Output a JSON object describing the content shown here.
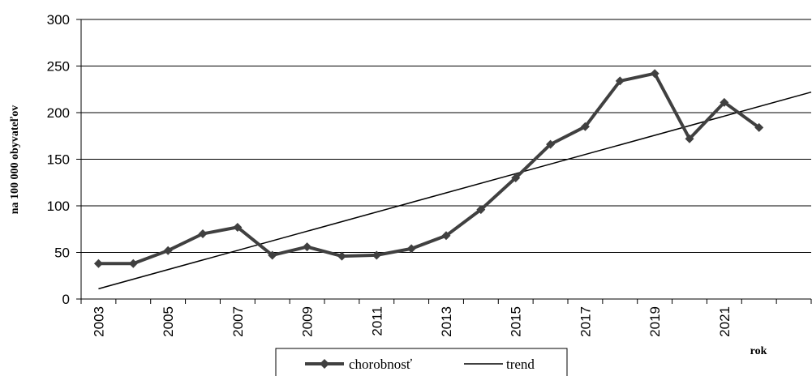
{
  "chart_data": {
    "type": "line",
    "title": "",
    "xlabel": "rok",
    "ylabel": "na 100 000 obyvateľov",
    "ylim": [
      0,
      300
    ],
    "yticks": [
      0,
      50,
      100,
      150,
      200,
      250,
      300
    ],
    "xlim": [
      2002.5,
      2023.5
    ],
    "xtick_labels": [
      "2003",
      "2005",
      "2007",
      "2009",
      "2011",
      "2013",
      "2015",
      "2017",
      "2019",
      "2021"
    ],
    "grid": "horizontal",
    "legend_position": "bottom-center",
    "x": [
      2003,
      2004,
      2005,
      2006,
      2007,
      2008,
      2009,
      2010,
      2011,
      2012,
      2013,
      2014,
      2015,
      2016,
      2017,
      2018,
      2019,
      2020,
      2021,
      2022
    ],
    "series": [
      {
        "name": "chorobnosť",
        "style": "line-with-diamond-markers",
        "color": "#404040",
        "values": [
          38,
          38,
          52,
          70,
          77,
          47,
          56,
          46,
          47,
          54,
          68,
          96,
          130,
          166,
          185,
          234,
          242,
          172,
          211,
          184
        ]
      },
      {
        "name": "trend",
        "style": "thin-line",
        "color": "#000000",
        "x": [
          2003,
          2023.5
        ],
        "values": [
          11,
          222
        ]
      }
    ]
  }
}
